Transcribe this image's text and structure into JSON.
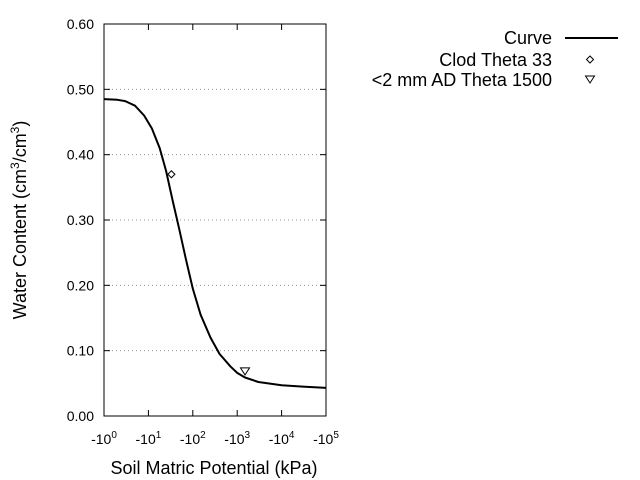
{
  "chart_data": {
    "type": "line",
    "xlabel": "Soil Matric Potential (kPa)",
    "ylabel_main": "Water Content (cm",
    "ylabel_exp1": "3",
    "ylabel_mid": "/cm",
    "ylabel_exp2": "3",
    "ylabel_end": ")",
    "x_scale": "log",
    "xlim": [
      1,
      100000
    ],
    "ylim": [
      0,
      0.6
    ],
    "x_ticks": [
      {
        "sign": "-10",
        "exp": "0"
      },
      {
        "sign": "-10",
        "exp": "1"
      },
      {
        "sign": "-10",
        "exp": "2"
      },
      {
        "sign": "-10",
        "exp": "3"
      },
      {
        "sign": "-10",
        "exp": "4"
      },
      {
        "sign": "-10",
        "exp": "5"
      }
    ],
    "y_ticks": [
      "0.00",
      "0.10",
      "0.20",
      "0.30",
      "0.40",
      "0.50",
      "0.60"
    ],
    "y_tick_values": [
      0,
      0.1,
      0.2,
      0.3,
      0.4,
      0.5,
      0.6
    ],
    "grid": "horizontal dotted",
    "legend_position": "top-right outside",
    "series": [
      {
        "name": "Curve",
        "style": "line",
        "color": "#000000",
        "x": [
          1,
          2,
          3,
          5,
          8,
          12,
          18,
          25,
          35,
          50,
          70,
          100,
          150,
          250,
          400,
          700,
          1000,
          1500,
          3000,
          10000,
          30000,
          100000
        ],
        "y": [
          0.485,
          0.484,
          0.482,
          0.475,
          0.46,
          0.44,
          0.41,
          0.375,
          0.33,
          0.285,
          0.24,
          0.195,
          0.155,
          0.12,
          0.095,
          0.076,
          0.066,
          0.059,
          0.052,
          0.047,
          0.045,
          0.043
        ]
      },
      {
        "name": "Clod Theta 33",
        "style": "marker",
        "marker": "diamond",
        "x": [
          33
        ],
        "y": [
          0.37
        ]
      },
      {
        "name": "<2 mm AD Theta 1500",
        "style": "marker",
        "marker": "triangle-down",
        "x": [
          1500
        ],
        "y": [
          0.069
        ]
      }
    ]
  }
}
